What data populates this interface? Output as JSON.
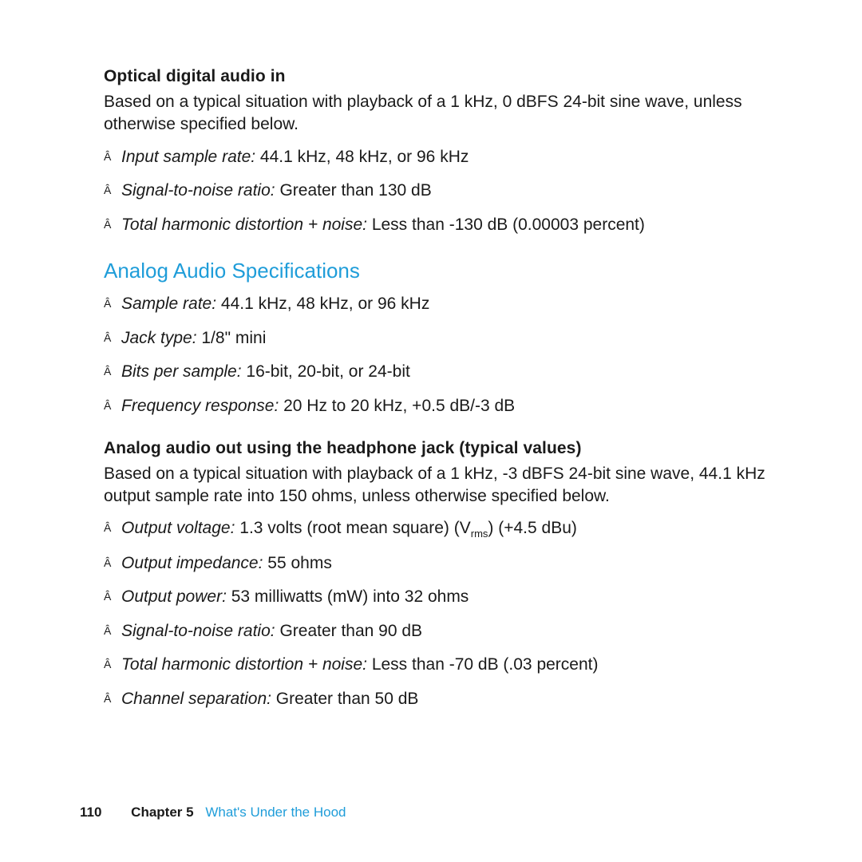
{
  "colors": {
    "text": "#1a1a1a",
    "accent": "#1f9dd9",
    "background": "#ffffff"
  },
  "sections": {
    "optical_in": {
      "heading": "Optical digital audio in",
      "intro": "Based on a typical situation with playback of a 1 kHz, 0 dBFS 24-bit sine wave, unless otherwise specified below.",
      "items": [
        {
          "label": "Input sample rate:",
          "value": "  44.1 kHz, 48 kHz, or 96 kHz"
        },
        {
          "label": "Signal-to-noise ratio:",
          "value": "  Greater than 130 dB"
        },
        {
          "label": "Total harmonic distortion + noise:",
          "value": "  Less than -130 dB (0.00003 percent)"
        }
      ]
    },
    "analog": {
      "title": "Analog Audio Specifications",
      "items": [
        {
          "label": "Sample rate:",
          "value": "  44.1 kHz, 48 kHz, or 96 kHz"
        },
        {
          "label": "Jack type:",
          "value": "  1/8\" mini"
        },
        {
          "label": "Bits per sample:",
          "value": "  16-bit, 20-bit, or 24-bit"
        },
        {
          "label": "Frequency response:",
          "value": "  20 Hz to 20 kHz, +0.5 dB/-3 dB"
        }
      ]
    },
    "headphone": {
      "heading": "Analog audio out using the headphone jack (typical values)",
      "intro": "Based on a typical situation with playback of a 1 kHz, -3 dBFS 24-bit sine wave, 44.1 kHz output sample rate into 150 ohms, unless otherwise specified below.",
      "items": [
        {
          "label": "Output voltage:",
          "value_html": "  1.3 volts (root mean square) (V<span class=\"sub\">rms</span>) (+4.5 dBu)"
        },
        {
          "label": "Output impedance:",
          "value": "  55 ohms"
        },
        {
          "label": "Output power:",
          "value": "  53 milliwatts (mW) into 32 ohms"
        },
        {
          "label": "Signal-to-noise ratio:",
          "value": "  Greater than 90 dB"
        },
        {
          "label": "Total harmonic distortion + noise:",
          "value": "  Less than -70 dB (.03 percent)"
        },
        {
          "label": "Channel separation:",
          "value": "  Greater than 50 dB"
        }
      ]
    }
  },
  "footer": {
    "page_number": "110",
    "chapter_label": "Chapter 5",
    "chapter_title": "What's Under the Hood"
  }
}
